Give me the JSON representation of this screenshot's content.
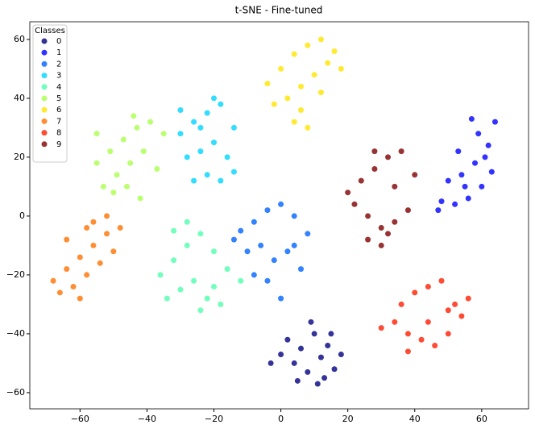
{
  "chart_data": {
    "type": "scatter",
    "title": "t-SNE - Fine-tuned",
    "legend_title": "Classes",
    "legend": "upper left",
    "xlim": [
      -75,
      74
    ],
    "ylim": [
      -65.5,
      66
    ],
    "xticks": [
      {
        "value": -60,
        "label": "−60"
      },
      {
        "value": -40,
        "label": "−40"
      },
      {
        "value": -20,
        "label": "−20"
      },
      0,
      20,
      40,
      60
    ],
    "yticks": [
      {
        "value": -60,
        "label": "−60"
      },
      {
        "value": -40,
        "label": "−40"
      },
      {
        "value": -20,
        "label": "−20"
      },
      0,
      20,
      40,
      60
    ],
    "series": [
      {
        "name": "0",
        "color": "#00007f",
        "x": [
          2,
          6,
          10,
          14,
          18,
          4,
          8,
          12,
          16,
          0,
          5,
          11,
          15,
          9,
          13,
          -3
        ],
        "y": [
          -42,
          -45,
          -40,
          -44,
          -47,
          -50,
          -53,
          -48,
          -52,
          -47,
          -56,
          -57,
          -40,
          -36,
          -55,
          -50
        ]
      },
      {
        "name": "1",
        "color": "#0000ff",
        "x": [
          48,
          52,
          56,
          60,
          63,
          50,
          54,
          58,
          62,
          64,
          47,
          55,
          59,
          61,
          53,
          57
        ],
        "y": [
          5,
          4,
          6,
          10,
          15,
          12,
          14,
          18,
          24,
          32,
          2,
          10,
          28,
          20,
          22,
          33
        ]
      },
      {
        "name": "2",
        "color": "#0063ff",
        "x": [
          -12,
          -8,
          -4,
          0,
          4,
          8,
          -10,
          -6,
          -2,
          2,
          6,
          -14,
          -4,
          0,
          -8,
          4
        ],
        "y": [
          -5,
          -2,
          2,
          4,
          0,
          -6,
          -12,
          -10,
          -15,
          -12,
          -18,
          -8,
          -22,
          -28,
          -20,
          -10
        ]
      },
      {
        "name": "3",
        "color": "#00d4ff",
        "x": [
          -30,
          -26,
          -22,
          -18,
          -14,
          -28,
          -24,
          -20,
          -16,
          -26,
          -22,
          -18,
          -30,
          -20,
          -24,
          -14
        ],
        "y": [
          28,
          32,
          35,
          38,
          30,
          20,
          22,
          25,
          20,
          12,
          14,
          12,
          36,
          40,
          30,
          15
        ]
      },
      {
        "name": "4",
        "color": "#4dffaa",
        "x": [
          -36,
          -32,
          -28,
          -24,
          -20,
          -16,
          -12,
          -34,
          -30,
          -26,
          -22,
          -18,
          -28,
          -24,
          -32,
          -20
        ],
        "y": [
          -20,
          -15,
          -10,
          -6,
          -12,
          -18,
          -22,
          -28,
          -25,
          -22,
          -28,
          -30,
          -2,
          -32,
          -5,
          -24
        ]
      },
      {
        "name": "5",
        "color": "#aaff4d",
        "x": [
          -55,
          -51,
          -47,
          -43,
          -39,
          -35,
          -53,
          -49,
          -45,
          -41,
          -37,
          -50,
          -46,
          -42,
          -55,
          -44
        ],
        "y": [
          18,
          22,
          26,
          30,
          32,
          28,
          10,
          14,
          18,
          22,
          16,
          8,
          10,
          6,
          28,
          34
        ]
      },
      {
        "name": "6",
        "color": "#ffe500",
        "x": [
          -4,
          0,
          4,
          8,
          12,
          16,
          2,
          6,
          10,
          14,
          18,
          -2,
          4,
          8,
          12,
          6
        ],
        "y": [
          45,
          50,
          55,
          58,
          60,
          56,
          40,
          44,
          48,
          52,
          50,
          38,
          32,
          30,
          42,
          36
        ]
      },
      {
        "name": "7",
        "color": "#ff7200",
        "x": [
          -68,
          -64,
          -60,
          -56,
          -52,
          -48,
          -66,
          -62,
          -58,
          -54,
          -50,
          -60,
          -56,
          -52,
          -64,
          -58
        ],
        "y": [
          -22,
          -18,
          -14,
          -10,
          -6,
          -4,
          -26,
          -24,
          -20,
          -16,
          -12,
          -28,
          -2,
          0,
          -8,
          -4
        ]
      },
      {
        "name": "8",
        "color": "#ff1e00",
        "x": [
          30,
          34,
          38,
          42,
          46,
          50,
          54,
          56,
          36,
          40,
          44,
          48,
          52,
          38,
          44,
          50
        ],
        "y": [
          -38,
          -36,
          -40,
          -42,
          -44,
          -40,
          -34,
          -28,
          -30,
          -26,
          -24,
          -22,
          -30,
          -46,
          -36,
          -32
        ]
      },
      {
        "name": "9",
        "color": "#7f0000",
        "x": [
          20,
          24,
          28,
          32,
          36,
          40,
          22,
          26,
          30,
          34,
          38,
          26,
          30,
          34,
          28,
          32
        ],
        "y": [
          8,
          12,
          16,
          20,
          22,
          14,
          4,
          0,
          -4,
          -2,
          2,
          -8,
          -10,
          10,
          22,
          -6
        ]
      }
    ]
  }
}
